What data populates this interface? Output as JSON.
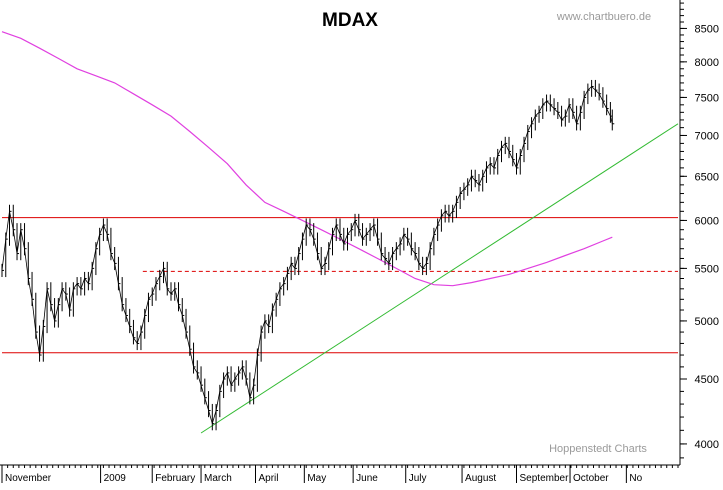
{
  "chart_data": {
    "type": "line",
    "title": "MDAX",
    "watermark_top": "www.chartbuero.de",
    "watermark_bottom": "Hoppenstedt Charts",
    "y_scale": "log",
    "ylim": [
      3850,
      8950
    ],
    "y_ticks": [
      {
        "value": 4000,
        "label": "4000"
      },
      {
        "value": 4500,
        "label": "4500"
      },
      {
        "value": 5000,
        "label": "5000"
      },
      {
        "value": 5500,
        "label": "5500"
      },
      {
        "value": 6000,
        "label": "6000"
      },
      {
        "value": 6500,
        "label": "6500"
      },
      {
        "value": 7000,
        "label": "7000"
      },
      {
        "value": 7500,
        "label": "7500"
      },
      {
        "value": 8000,
        "label": "8000"
      },
      {
        "value": 8500,
        "label": "8500"
      }
    ],
    "x_labels": [
      "November",
      "2009",
      "February",
      "March",
      "April",
      "May",
      "June",
      "July",
      "August",
      "September",
      "October",
      "No"
    ],
    "x_label_positions": [
      0,
      105,
      160,
      212,
      270,
      322,
      374,
      430,
      490,
      548,
      605,
      665
    ],
    "x_max": 720,
    "price_series": [
      [
        0,
        5480
      ],
      [
        4,
        5800
      ],
      [
        8,
        6100
      ],
      [
        12,
        5900
      ],
      [
        16,
        5650
      ],
      [
        20,
        5900
      ],
      [
        24,
        5700
      ],
      [
        28,
        5400
      ],
      [
        32,
        5200
      ],
      [
        36,
        4900
      ],
      [
        40,
        4700
      ],
      [
        44,
        4950
      ],
      [
        48,
        5300
      ],
      [
        52,
        5150
      ],
      [
        56,
        5000
      ],
      [
        60,
        5150
      ],
      [
        64,
        5300
      ],
      [
        68,
        5250
      ],
      [
        72,
        5100
      ],
      [
        76,
        5300
      ],
      [
        80,
        5350
      ],
      [
        84,
        5300
      ],
      [
        88,
        5400
      ],
      [
        92,
        5350
      ],
      [
        96,
        5500
      ],
      [
        100,
        5700
      ],
      [
        104,
        5850
      ],
      [
        108,
        5950
      ],
      [
        112,
        5850
      ],
      [
        116,
        5650
      ],
      [
        120,
        5550
      ],
      [
        124,
        5350
      ],
      [
        128,
        5150
      ],
      [
        132,
        5050
      ],
      [
        136,
        4950
      ],
      [
        140,
        4850
      ],
      [
        144,
        4800
      ],
      [
        148,
        4900
      ],
      [
        152,
        5050
      ],
      [
        156,
        5200
      ],
      [
        160,
        5250
      ],
      [
        164,
        5350
      ],
      [
        168,
        5420
      ],
      [
        172,
        5500
      ],
      [
        176,
        5300
      ],
      [
        180,
        5250
      ],
      [
        184,
        5300
      ],
      [
        188,
        5150
      ],
      [
        192,
        5050
      ],
      [
        196,
        4900
      ],
      [
        200,
        4750
      ],
      [
        204,
        4600
      ],
      [
        208,
        4550
      ],
      [
        212,
        4450
      ],
      [
        216,
        4350
      ],
      [
        220,
        4250
      ],
      [
        224,
        4150
      ],
      [
        228,
        4250
      ],
      [
        232,
        4400
      ],
      [
        236,
        4500
      ],
      [
        240,
        4550
      ],
      [
        244,
        4450
      ],
      [
        248,
        4500
      ],
      [
        252,
        4550
      ],
      [
        256,
        4600
      ],
      [
        260,
        4500
      ],
      [
        264,
        4350
      ],
      [
        268,
        4450
      ],
      [
        272,
        4700
      ],
      [
        276,
        4900
      ],
      [
        280,
        5000
      ],
      [
        284,
        4950
      ],
      [
        288,
        5100
      ],
      [
        292,
        5200
      ],
      [
        296,
        5300
      ],
      [
        300,
        5350
      ],
      [
        304,
        5450
      ],
      [
        308,
        5550
      ],
      [
        312,
        5500
      ],
      [
        316,
        5650
      ],
      [
        320,
        5800
      ],
      [
        324,
        5950
      ],
      [
        328,
        5900
      ],
      [
        332,
        5800
      ],
      [
        336,
        5650
      ],
      [
        340,
        5500
      ],
      [
        344,
        5550
      ],
      [
        348,
        5700
      ],
      [
        352,
        5850
      ],
      [
        356,
        5950
      ],
      [
        360,
        5850
      ],
      [
        364,
        5750
      ],
      [
        368,
        5850
      ],
      [
        372,
        5900
      ],
      [
        376,
        6000
      ],
      [
        380,
        5900
      ],
      [
        384,
        5800
      ],
      [
        388,
        5850
      ],
      [
        392,
        5900
      ],
      [
        396,
        5950
      ],
      [
        400,
        5800
      ],
      [
        404,
        5650
      ],
      [
        408,
        5600
      ],
      [
        412,
        5550
      ],
      [
        416,
        5650
      ],
      [
        420,
        5700
      ],
      [
        424,
        5750
      ],
      [
        428,
        5850
      ],
      [
        432,
        5800
      ],
      [
        436,
        5700
      ],
      [
        440,
        5650
      ],
      [
        444,
        5550
      ],
      [
        448,
        5500
      ],
      [
        452,
        5550
      ],
      [
        456,
        5700
      ],
      [
        460,
        5850
      ],
      [
        464,
        5950
      ],
      [
        468,
        6050
      ],
      [
        472,
        6100
      ],
      [
        476,
        6050
      ],
      [
        480,
        6100
      ],
      [
        484,
        6200
      ],
      [
        488,
        6300
      ],
      [
        492,
        6350
      ],
      [
        496,
        6400
      ],
      [
        500,
        6500
      ],
      [
        504,
        6450
      ],
      [
        508,
        6400
      ],
      [
        512,
        6500
      ],
      [
        516,
        6600
      ],
      [
        520,
        6650
      ],
      [
        524,
        6600
      ],
      [
        528,
        6750
      ],
      [
        532,
        6850
      ],
      [
        536,
        6900
      ],
      [
        540,
        6800
      ],
      [
        544,
        6700
      ],
      [
        548,
        6600
      ],
      [
        552,
        6750
      ],
      [
        556,
        6900
      ],
      [
        560,
        7050
      ],
      [
        564,
        7150
      ],
      [
        568,
        7250
      ],
      [
        572,
        7300
      ],
      [
        576,
        7400
      ],
      [
        580,
        7450
      ],
      [
        584,
        7400
      ],
      [
        588,
        7350
      ],
      [
        592,
        7300
      ],
      [
        596,
        7200
      ],
      [
        600,
        7250
      ],
      [
        604,
        7400
      ],
      [
        608,
        7300
      ],
      [
        612,
        7150
      ],
      [
        616,
        7300
      ],
      [
        620,
        7500
      ],
      [
        624,
        7600
      ],
      [
        628,
        7650
      ],
      [
        632,
        7600
      ],
      [
        636,
        7550
      ],
      [
        640,
        7450
      ],
      [
        644,
        7350
      ],
      [
        648,
        7250
      ],
      [
        650,
        7150
      ]
    ],
    "moving_average_200": [
      [
        0,
        8450
      ],
      [
        20,
        8350
      ],
      [
        40,
        8200
      ],
      [
        60,
        8050
      ],
      [
        80,
        7900
      ],
      [
        100,
        7800
      ],
      [
        120,
        7700
      ],
      [
        140,
        7550
      ],
      [
        160,
        7400
      ],
      [
        180,
        7250
      ],
      [
        200,
        7050
      ],
      [
        220,
        6850
      ],
      [
        240,
        6650
      ],
      [
        260,
        6400
      ],
      [
        280,
        6200
      ],
      [
        300,
        6100
      ],
      [
        320,
        6000
      ],
      [
        340,
        5900
      ],
      [
        360,
        5800
      ],
      [
        380,
        5700
      ],
      [
        400,
        5600
      ],
      [
        420,
        5500
      ],
      [
        440,
        5400
      ],
      [
        460,
        5340
      ],
      [
        480,
        5330
      ],
      [
        500,
        5360
      ],
      [
        520,
        5400
      ],
      [
        540,
        5440
      ],
      [
        560,
        5500
      ],
      [
        580,
        5560
      ],
      [
        600,
        5630
      ],
      [
        620,
        5700
      ],
      [
        640,
        5780
      ],
      [
        650,
        5820
      ]
    ],
    "horizontal_lines": [
      {
        "value": 6030,
        "style": "solid",
        "color": "#dd0000",
        "from_x": 0,
        "to_x": 720
      },
      {
        "value": 5470,
        "style": "dashed",
        "color": "#dd0000",
        "from_x": 150,
        "to_x": 720
      },
      {
        "value": 4720,
        "style": "solid",
        "color": "#dd0000",
        "from_x": 0,
        "to_x": 720
      }
    ],
    "trend_line": {
      "color": "#33bb33",
      "points": [
        [
          212,
          4080
        ],
        [
          720,
          7150
        ]
      ]
    },
    "colors": {
      "price": "#000000",
      "moving_average": "#e040e0",
      "resistance": "#dd0000",
      "trend": "#33bb33",
      "axis": "#000000"
    }
  }
}
